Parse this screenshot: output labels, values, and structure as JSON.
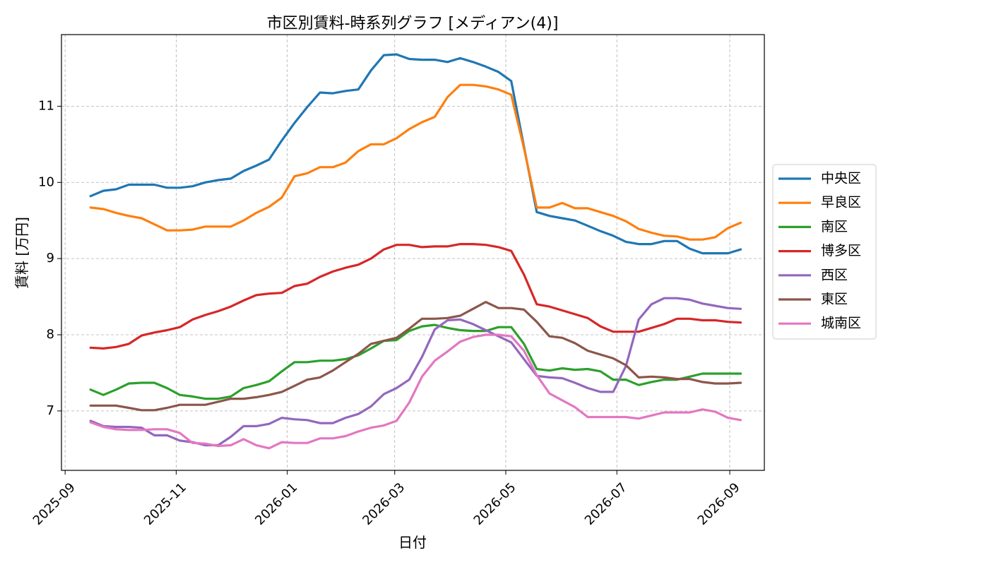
{
  "chart_data": {
    "type": "line",
    "title": "市区別賃料-時系列グラフ [メディアン(4)]",
    "xlabel": "日付",
    "ylabel": "賃料 [万円]",
    "x_axis_type": "date",
    "xlim": [
      "2025-08-30",
      "2026-09-20"
    ],
    "ylim": [
      6.22,
      11.94
    ],
    "x_ticks": [
      "2025-09-01",
      "2025-11-01",
      "2026-01-01",
      "2026-03-01",
      "2026-05-01",
      "2026-07-01",
      "2026-09-01"
    ],
    "x_tick_labels": [
      "2025-09",
      "2025-11",
      "2026-01",
      "2026-03",
      "2026-05",
      "2026-07",
      "2026-09"
    ],
    "y_ticks": [
      7,
      8,
      9,
      10,
      11
    ],
    "y_tick_labels": [
      "7",
      "8",
      "9",
      "10",
      "11"
    ],
    "grid": true,
    "legend_position": "outside-right",
    "x": [
      "2025-09-15",
      "2025-09-22",
      "2025-09-29",
      "2025-10-06",
      "2025-10-13",
      "2025-10-20",
      "2025-10-27",
      "2025-11-03",
      "2025-11-10",
      "2025-11-17",
      "2025-11-24",
      "2025-12-01",
      "2025-12-08",
      "2025-12-15",
      "2025-12-22",
      "2025-12-29",
      "2026-01-05",
      "2026-01-12",
      "2026-01-19",
      "2026-01-26",
      "2026-02-02",
      "2026-02-09",
      "2026-02-16",
      "2026-02-23",
      "2026-03-02",
      "2026-03-09",
      "2026-03-16",
      "2026-03-23",
      "2026-03-30",
      "2026-04-06",
      "2026-04-13",
      "2026-04-20",
      "2026-04-27",
      "2026-05-04",
      "2026-05-11",
      "2026-05-18",
      "2026-05-25",
      "2026-06-01",
      "2026-06-08",
      "2026-06-15",
      "2026-06-22",
      "2026-06-29",
      "2026-07-06",
      "2026-07-13",
      "2026-07-20",
      "2026-07-27",
      "2026-08-03",
      "2026-08-10",
      "2026-08-17",
      "2026-08-24",
      "2026-08-31",
      "2026-09-07"
    ],
    "series": [
      {
        "name": "中央区",
        "color": "#1f77b4",
        "values": [
          9.82,
          9.89,
          9.91,
          9.97,
          9.97,
          9.97,
          9.93,
          9.93,
          9.95,
          10.0,
          10.03,
          10.05,
          10.15,
          10.22,
          10.3,
          10.55,
          10.78,
          10.99,
          11.18,
          11.17,
          11.2,
          11.22,
          11.47,
          11.67,
          11.68,
          11.62,
          11.61,
          11.61,
          11.58,
          11.63,
          11.58,
          11.52,
          11.45,
          11.33,
          10.47,
          9.61,
          9.56,
          9.53,
          9.5,
          9.43,
          9.36,
          9.3,
          9.22,
          9.19,
          9.19,
          9.23,
          9.23,
          9.13,
          9.07,
          9.07,
          9.07,
          9.12
        ]
      },
      {
        "name": "早良区",
        "color": "#ff7f0e",
        "values": [
          9.67,
          9.65,
          9.6,
          9.56,
          9.53,
          9.45,
          9.37,
          9.37,
          9.38,
          9.42,
          9.42,
          9.42,
          9.5,
          9.6,
          9.68,
          9.8,
          10.08,
          10.12,
          10.2,
          10.2,
          10.26,
          10.41,
          10.5,
          10.5,
          10.58,
          10.7,
          10.79,
          10.86,
          11.12,
          11.28,
          11.28,
          11.26,
          11.22,
          11.15,
          10.45,
          9.67,
          9.67,
          9.73,
          9.66,
          9.66,
          9.61,
          9.56,
          9.49,
          9.39,
          9.34,
          9.3,
          9.29,
          9.25,
          9.25,
          9.28,
          9.4,
          9.47
        ]
      },
      {
        "name": "南区",
        "color": "#2ca02c",
        "values": [
          7.28,
          7.21,
          7.28,
          7.36,
          7.37,
          7.37,
          7.3,
          7.21,
          7.19,
          7.16,
          7.16,
          7.19,
          7.3,
          7.34,
          7.39,
          7.52,
          7.64,
          7.64,
          7.66,
          7.66,
          7.68,
          7.73,
          7.82,
          7.92,
          7.93,
          8.05,
          8.11,
          8.13,
          8.09,
          8.06,
          8.05,
          8.05,
          8.1,
          8.1,
          7.88,
          7.55,
          7.53,
          7.56,
          7.54,
          7.55,
          7.52,
          7.41,
          7.41,
          7.34,
          7.38,
          7.41,
          7.41,
          7.45,
          7.49,
          7.49,
          7.49,
          7.49
        ]
      },
      {
        "name": "博多区",
        "color": "#d62728",
        "values": [
          7.83,
          7.82,
          7.84,
          7.88,
          7.99,
          8.03,
          8.06,
          8.1,
          8.2,
          8.26,
          8.31,
          8.37,
          8.45,
          8.52,
          8.54,
          8.55,
          8.64,
          8.67,
          8.76,
          8.83,
          8.88,
          8.92,
          9.0,
          9.12,
          9.18,
          9.18,
          9.15,
          9.16,
          9.16,
          9.19,
          9.19,
          9.18,
          9.15,
          9.1,
          8.79,
          8.4,
          8.37,
          8.32,
          8.27,
          8.22,
          8.11,
          8.04,
          8.04,
          8.04,
          8.09,
          8.14,
          8.21,
          8.21,
          8.19,
          8.19,
          8.17,
          8.16
        ]
      },
      {
        "name": "西区",
        "color": "#9467bd",
        "values": [
          6.87,
          6.8,
          6.79,
          6.79,
          6.78,
          6.68,
          6.68,
          6.61,
          6.59,
          6.55,
          6.55,
          6.66,
          6.8,
          6.8,
          6.83,
          6.91,
          6.89,
          6.88,
          6.84,
          6.84,
          6.91,
          6.96,
          7.06,
          7.22,
          7.3,
          7.41,
          7.71,
          8.07,
          8.19,
          8.2,
          8.14,
          8.06,
          7.98,
          7.9,
          7.68,
          7.46,
          7.44,
          7.43,
          7.37,
          7.3,
          7.25,
          7.25,
          7.59,
          8.2,
          8.4,
          8.48,
          8.48,
          8.46,
          8.41,
          8.38,
          8.35,
          8.34
        ]
      },
      {
        "name": "東区",
        "color": "#8c564b",
        "values": [
          7.07,
          7.07,
          7.07,
          7.04,
          7.01,
          7.01,
          7.04,
          7.08,
          7.08,
          7.08,
          7.12,
          7.16,
          7.16,
          7.18,
          7.21,
          7.25,
          7.33,
          7.41,
          7.44,
          7.53,
          7.64,
          7.75,
          7.88,
          7.92,
          7.96,
          8.08,
          8.21,
          8.21,
          8.22,
          8.25,
          8.34,
          8.43,
          8.35,
          8.35,
          8.33,
          8.17,
          7.98,
          7.96,
          7.89,
          7.79,
          7.74,
          7.69,
          7.6,
          7.44,
          7.45,
          7.44,
          7.42,
          7.42,
          7.38,
          7.36,
          7.36,
          7.37
        ]
      },
      {
        "name": "城南区",
        "color": "#e377c2",
        "values": [
          6.85,
          6.79,
          6.76,
          6.75,
          6.75,
          6.76,
          6.76,
          6.71,
          6.58,
          6.57,
          6.54,
          6.55,
          6.63,
          6.55,
          6.51,
          6.59,
          6.58,
          6.58,
          6.64,
          6.64,
          6.67,
          6.73,
          6.78,
          6.81,
          6.87,
          7.11,
          7.45,
          7.66,
          7.78,
          7.91,
          7.97,
          8.0,
          8.0,
          7.98,
          7.79,
          7.47,
          7.23,
          7.14,
          7.05,
          6.92,
          6.92,
          6.92,
          6.92,
          6.9,
          6.94,
          6.98,
          6.98,
          6.98,
          7.02,
          6.99,
          6.91,
          6.88
        ]
      }
    ]
  }
}
